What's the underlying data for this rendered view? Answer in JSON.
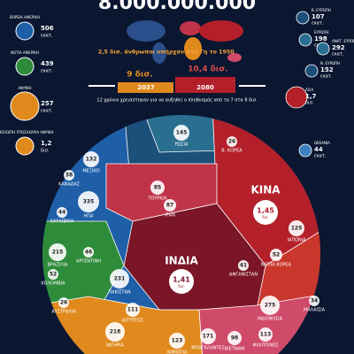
{
  "header": {
    "title": "8.000.000.000"
  },
  "legend_left": [
    {
      "name": "ΒΟΡΕΙΑ ΑΜΕΡΙΚΗ",
      "value": 506,
      "unit": "εκατ."
    },
    {
      "name": "ΝΟΤΙΑ ΑΜΕΡΙΚΗ",
      "value": 439,
      "unit": "εκατ."
    },
    {
      "name": "ΑΦΡΙΚΗ",
      "value": 257,
      "unit": "εκατ."
    },
    {
      "name": "ΥΠΟΛΟΙΠΗ ΥΠΟΣΑΧΑΡΙΑ ΑΦΡΙΚΗ",
      "value": "1,2",
      "unit": "δισ."
    }
  ],
  "legend_right": [
    {
      "name": "Β. ΕΥΡΩΠΗ",
      "value": 107,
      "unit": "εκατ."
    },
    {
      "name": "ΕΥΡΩΠΗ",
      "value": 198,
      "unit": "εκατ."
    },
    {
      "name": "ΑΝΑΤ. ΕΥΡΩΠΗ",
      "value": 292,
      "unit": "εκατ."
    },
    {
      "name": "Ν. ΕΥΡΩΠΗ",
      "value": 152,
      "unit": "εκατ."
    },
    {
      "name": "ΑΣΙΑ",
      "value": "1,7",
      "unit": "δισ."
    },
    {
      "name": "ΩΚΕΑΝΙΑ",
      "value": 44,
      "unit": "εκατ."
    }
  ],
  "timeline": {
    "note_1950": "2,5 δισ. άνθρωποι υπήρχαν στη Γη το 1950",
    "left_value": "9 δισ.",
    "right_value": "10,4 δισ.",
    "left_year": "2037",
    "right_year": "2080",
    "caption": "12 χρόνια χρειάστηκαν για να αυξηθεί ο πληθυσμός από τα 7 στα 8 δισ."
  },
  "big": {
    "china": {
      "name": "ΚΙΝΑ",
      "value": "1,45",
      "unit": "δισ."
    },
    "india": {
      "name": "ΙΝΔΙΑ",
      "value": "1,41",
      "unit": "δισ."
    }
  },
  "countries": [
    {
      "name": "ΗΠΑ",
      "value": 335
    },
    {
      "name": "ΜΕΞΙΚΟ",
      "value": 132
    },
    {
      "name": "ΚΑΝΑΔΑΣ",
      "value": 38
    },
    {
      "name": "ΚΑΡΑΪΒΙΚΗ",
      "value": 44
    },
    {
      "name": "ΡΩΣΙΑ",
      "value": 145
    },
    {
      "name": "ΤΟΥΡΚΙΑ",
      "value": 85
    },
    {
      "name": "ΙΡΑΝ",
      "value": 87
    },
    {
      "name": "ΠΑΚΙΣΤΑΝ",
      "value": 231
    },
    {
      "name": "ΑΦΓΑΝΙΣΤΑΝ",
      "value": 41
    },
    {
      "name": "Β. ΚΟΡΕΑ",
      "value": 26
    },
    {
      "name": "ΙΑΠΩΝΙΑ",
      "value": 125
    },
    {
      "name": "ΝΟΤΙΑ ΚΟΡΕΑ",
      "value": 52
    },
    {
      "name": "ΙΝΔΟΝΗΣΙΑ",
      "value": 275
    },
    {
      "name": "ΦΙΛΙΠΠΙΝΕΣ",
      "value": 113
    },
    {
      "name": "ΒΙΕΤΝΑΜ",
      "value": 98
    },
    {
      "name": "ΜΑΛΑΙΣΙΑ",
      "value": 34
    },
    {
      "name": "ΒΡΑΖΙΛΙΑ",
      "value": 215
    },
    {
      "name": "ΑΡΓΕΝΤΙΝΗ",
      "value": 46
    },
    {
      "name": "ΚΟΛΟΜΒΙΑ",
      "value": 52
    },
    {
      "name": "ΑΥΣΤΡΑΛΙΑ",
      "value": 26
    },
    {
      "name": "ΝΙΓΗΡΙΑ",
      "value": 218
    },
    {
      "name": "ΑΙΘΙΟΠΙΑ",
      "value": 123
    },
    {
      "name": "ΑΙΓΥΠΤΟΣ",
      "value": 111
    },
    {
      "name": "ΜΠΑΓΚΛΑΝΤΕΣ",
      "value": 171
    }
  ]
}
